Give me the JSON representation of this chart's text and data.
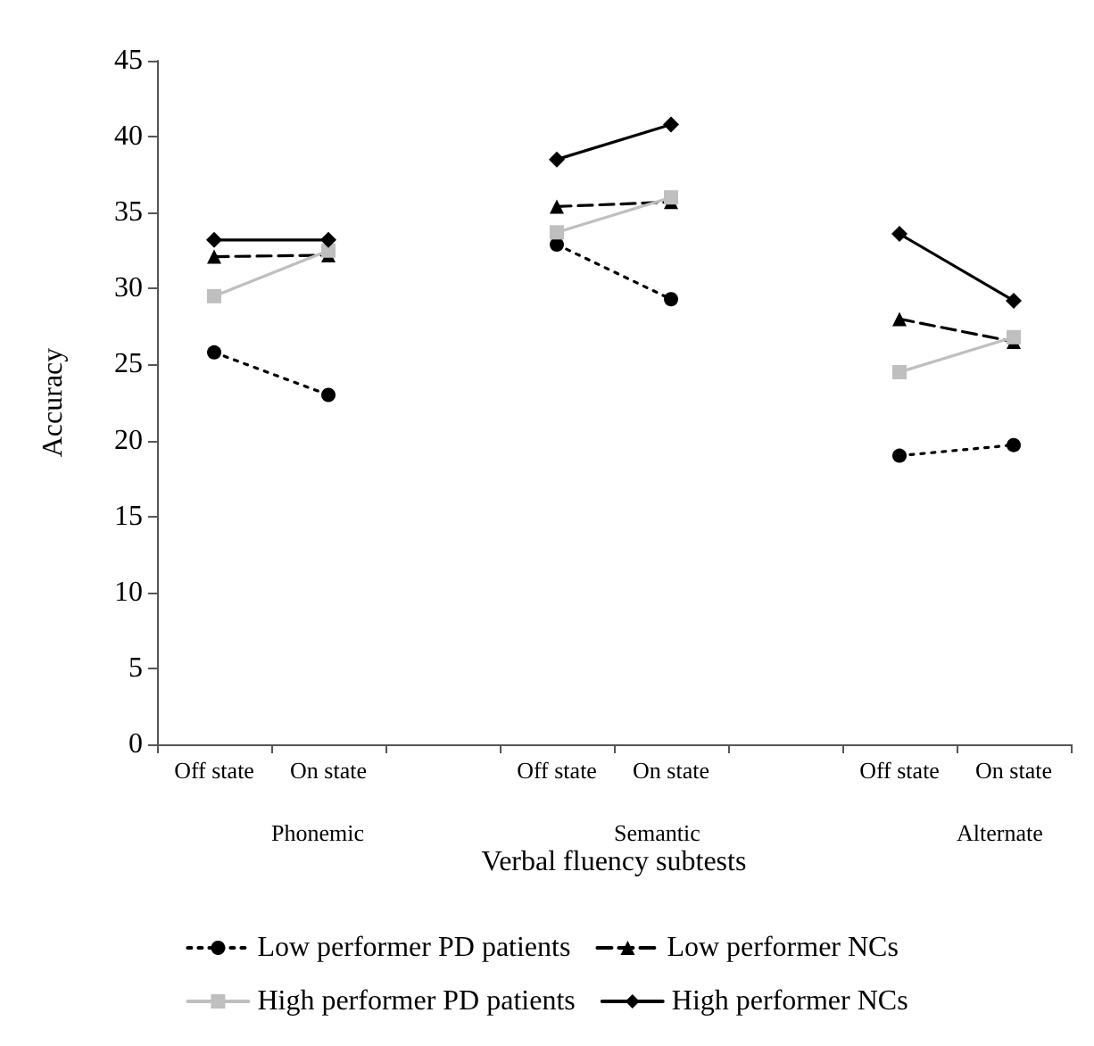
{
  "chart_data": {
    "type": "line",
    "xlabel": "Verbal fluency subtests",
    "ylabel": "Accuracy",
    "categories": [
      "Off state",
      "On state",
      null,
      "Off state",
      "On state",
      null,
      "Off state",
      "On state"
    ],
    "annotations": [
      "Phonemic",
      "Semantic",
      "Alternate"
    ],
    "ylim": [
      0,
      45
    ],
    "yticks": [
      0,
      5,
      10,
      15,
      20,
      25,
      30,
      35,
      40,
      45
    ],
    "grid": false,
    "legend": "bottom",
    "series": [
      {
        "name": "Low performer PD patients",
        "color": "#000000",
        "marker": "circle",
        "line_style": "dotted",
        "values": [
          25.8,
          23.0,
          null,
          32.9,
          29.3,
          null,
          19.0,
          19.7
        ]
      },
      {
        "name": "Low performer NCs",
        "color": "#000000",
        "marker": "triangle",
        "line_style": "dashed",
        "values": [
          32.1,
          32.2,
          null,
          35.4,
          35.7,
          null,
          28.0,
          26.5
        ]
      },
      {
        "name": "High performer PD patients",
        "color": "#bfbfbf",
        "marker": "square",
        "line_style": "solid",
        "values": [
          29.5,
          32.5,
          null,
          33.7,
          36.0,
          null,
          24.5,
          26.8
        ]
      },
      {
        "name": "High performer NCs",
        "color": "#000000",
        "marker": "diamond",
        "line_style": "solid",
        "values": [
          33.2,
          33.2,
          null,
          38.5,
          40.8,
          null,
          33.6,
          29.2
        ]
      }
    ]
  }
}
